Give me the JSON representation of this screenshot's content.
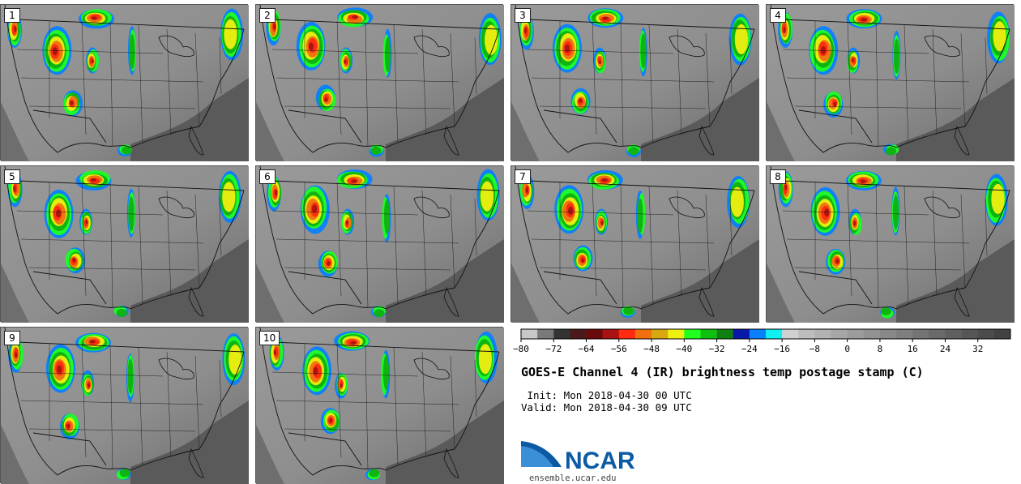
{
  "panels": [
    {
      "label": "1"
    },
    {
      "label": "2"
    },
    {
      "label": "3"
    },
    {
      "label": "4"
    },
    {
      "label": "5"
    },
    {
      "label": "6"
    },
    {
      "label": "7"
    },
    {
      "label": "8"
    },
    {
      "label": "9"
    },
    {
      "label": "10"
    }
  ],
  "colorbar": {
    "tick_labels": [
      "−80",
      "−72",
      "−64",
      "−56",
      "−48",
      "−40",
      "−32",
      "−24",
      "−16",
      "−8",
      "0",
      "8",
      "16",
      "24",
      "32"
    ],
    "tick_values": [
      -80,
      -72,
      -64,
      -56,
      -48,
      -40,
      -32,
      -24,
      -16,
      -8,
      0,
      8,
      16,
      24,
      32
    ],
    "min": -80,
    "max": 40,
    "step": 4,
    "colors": [
      "#c8c8c8",
      "#7a7a7a",
      "#333333",
      "#4a1a1a",
      "#6a0a0a",
      "#aa1212",
      "#ff2a10",
      "#f07010",
      "#d8a810",
      "#f0f010",
      "#20ff20",
      "#10c010",
      "#108010",
      "#0818a8",
      "#0a80ff",
      "#10f0f0",
      "#d0d0d0",
      "#bdbdbd",
      "#b2b2b2",
      "#a6a6a6",
      "#9c9c9c",
      "#929292",
      "#888888",
      "#7e7e7e",
      "#747474",
      "#6a6a6a",
      "#606060",
      "#565656",
      "#4c4c4c",
      "#424242"
    ]
  },
  "title": "GOES-E Channel 4 (IR) brightness temp postage stamp (C)",
  "init_line": " Init: Mon 2018-04-30 00 UTC",
  "valid_line": "Valid: Mon 2018-04-30 09 UTC",
  "logo": {
    "text": "NCAR",
    "url": "ensemble.ucar.edu",
    "color": "#0b5aa3"
  }
}
